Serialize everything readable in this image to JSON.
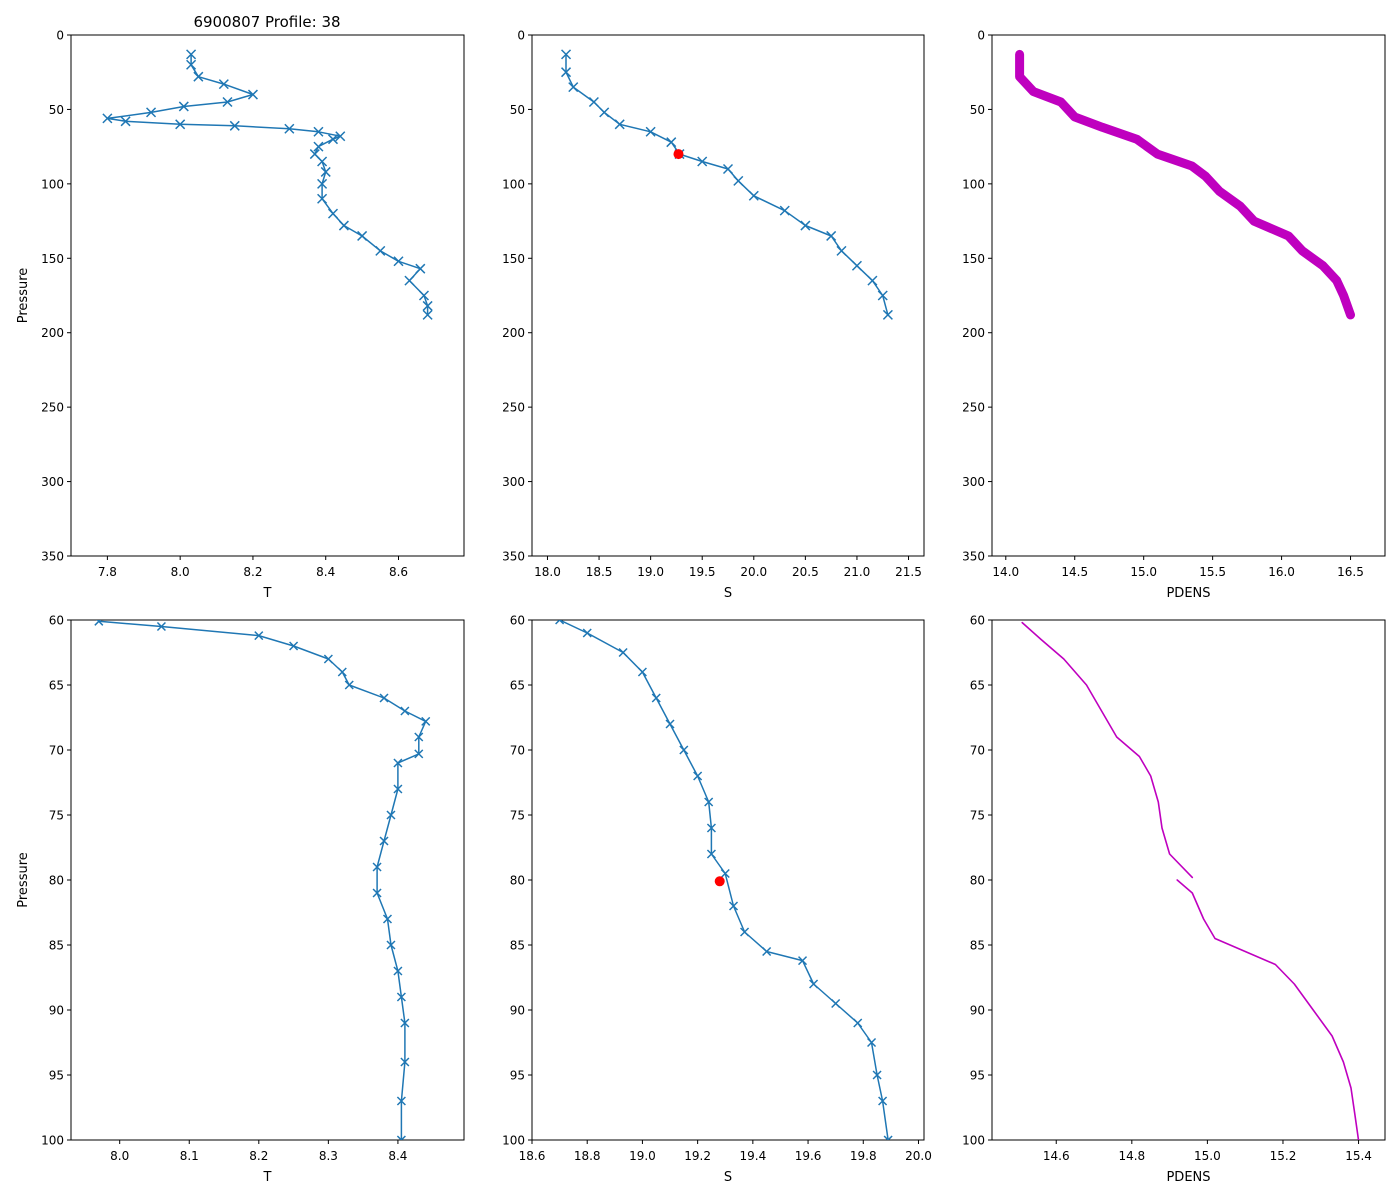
{
  "figure_title": "6900807 Profile: 38",
  "colors": {
    "series": "#1f77b4",
    "density": "#bf00bf",
    "highlight": "#ff0000",
    "axis": "#000000"
  },
  "chart_data": [
    {
      "id": "top-left",
      "type": "line",
      "marker": "x",
      "title": "6900807 Profile: 38",
      "xlabel": "T",
      "ylabel": "Pressure",
      "xlim": [
        7.7,
        8.78
      ],
      "ylim": [
        350,
        0
      ],
      "xticks": [
        "7.8",
        "8.0",
        "8.2",
        "8.4",
        "8.6"
      ],
      "yticks": [
        "0",
        "50",
        "100",
        "150",
        "200",
        "250",
        "300",
        "350"
      ],
      "series": [
        {
          "name": "T",
          "points": [
            [
              8.03,
              13
            ],
            [
              8.03,
              20
            ],
            [
              8.05,
              28
            ],
            [
              8.12,
              33
            ],
            [
              8.2,
              40
            ],
            [
              8.13,
              45
            ],
            [
              8.01,
              48
            ],
            [
              7.92,
              52
            ],
            [
              7.8,
              56
            ],
            [
              7.85,
              58
            ],
            [
              8.0,
              60
            ],
            [
              8.15,
              61
            ],
            [
              8.3,
              63
            ],
            [
              8.38,
              65
            ],
            [
              8.44,
              68
            ],
            [
              8.42,
              70
            ],
            [
              8.38,
              75
            ],
            [
              8.37,
              80
            ],
            [
              8.39,
              85
            ],
            [
              8.4,
              92
            ],
            [
              8.39,
              100
            ],
            [
              8.39,
              110
            ],
            [
              8.42,
              120
            ],
            [
              8.45,
              128
            ],
            [
              8.5,
              135
            ],
            [
              8.55,
              145
            ],
            [
              8.6,
              152
            ],
            [
              8.66,
              157
            ],
            [
              8.63,
              165
            ],
            [
              8.67,
              175
            ],
            [
              8.68,
              182
            ],
            [
              8.68,
              188
            ]
          ]
        }
      ]
    },
    {
      "id": "top-middle",
      "type": "line",
      "marker": "x",
      "title": "",
      "xlabel": "S",
      "ylabel": "",
      "xlim": [
        17.85,
        21.65
      ],
      "ylim": [
        350,
        0
      ],
      "xticks": [
        "18.0",
        "18.5",
        "19.0",
        "19.5",
        "20.0",
        "20.5",
        "21.0",
        "21.5"
      ],
      "yticks": [
        "0",
        "50",
        "100",
        "150",
        "200",
        "250",
        "300",
        "350"
      ],
      "series": [
        {
          "name": "S",
          "points": [
            [
              18.18,
              13
            ],
            [
              18.18,
              25
            ],
            [
              18.25,
              35
            ],
            [
              18.45,
              45
            ],
            [
              18.55,
              52
            ],
            [
              18.7,
              60
            ],
            [
              19.0,
              65
            ],
            [
              19.2,
              72
            ],
            [
              19.28,
              80
            ],
            [
              19.5,
              85
            ],
            [
              19.75,
              90
            ],
            [
              19.85,
              98
            ],
            [
              20.0,
              108
            ],
            [
              20.3,
              118
            ],
            [
              20.5,
              128
            ],
            [
              20.75,
              135
            ],
            [
              20.85,
              145
            ],
            [
              21.0,
              155
            ],
            [
              21.15,
              165
            ],
            [
              21.25,
              175
            ],
            [
              21.3,
              188
            ]
          ]
        }
      ],
      "highlight": {
        "x": 19.27,
        "y": 80
      }
    },
    {
      "id": "top-right",
      "type": "line",
      "marker": "",
      "title": "",
      "xlabel": "PDENS",
      "ylabel": "",
      "xlim": [
        13.9,
        16.75
      ],
      "ylim": [
        350,
        0
      ],
      "xticks": [
        "14.0",
        "14.5",
        "15.0",
        "15.5",
        "16.0",
        "16.5"
      ],
      "yticks": [
        "0",
        "50",
        "100",
        "150",
        "200",
        "250",
        "300",
        "350"
      ],
      "series": [
        {
          "name": "PDENS",
          "points": [
            [
              14.1,
              13
            ],
            [
              14.1,
              28
            ],
            [
              14.2,
              38
            ],
            [
              14.4,
              45
            ],
            [
              14.5,
              55
            ],
            [
              14.7,
              62
            ],
            [
              14.95,
              70
            ],
            [
              15.1,
              80
            ],
            [
              15.35,
              88
            ],
            [
              15.45,
              95
            ],
            [
              15.55,
              105
            ],
            [
              15.7,
              115
            ],
            [
              15.8,
              125
            ],
            [
              16.05,
              135
            ],
            [
              16.15,
              145
            ],
            [
              16.3,
              155
            ],
            [
              16.4,
              165
            ],
            [
              16.45,
              175
            ],
            [
              16.5,
              188
            ]
          ]
        }
      ]
    },
    {
      "id": "bottom-left",
      "type": "line",
      "marker": "x",
      "title": "",
      "xlabel": "T",
      "ylabel": "Pressure",
      "xlim": [
        7.93,
        8.495
      ],
      "ylim": [
        100,
        60
      ],
      "xticks": [
        "8.0",
        "8.1",
        "8.2",
        "8.3",
        "8.4"
      ],
      "yticks": [
        "60",
        "65",
        "70",
        "75",
        "80",
        "85",
        "90",
        "95",
        "100"
      ],
      "series": [
        {
          "name": "T",
          "points": [
            [
              7.97,
              60.1
            ],
            [
              8.06,
              60.5
            ],
            [
              8.2,
              61.2
            ],
            [
              8.25,
              62
            ],
            [
              8.3,
              63
            ],
            [
              8.32,
              64
            ],
            [
              8.33,
              65
            ],
            [
              8.38,
              66
            ],
            [
              8.41,
              67
            ],
            [
              8.44,
              67.8
            ],
            [
              8.43,
              69
            ],
            [
              8.43,
              70.3
            ],
            [
              8.4,
              71
            ],
            [
              8.4,
              73
            ],
            [
              8.39,
              75
            ],
            [
              8.38,
              77
            ],
            [
              8.37,
              79
            ],
            [
              8.37,
              81
            ],
            [
              8.385,
              83
            ],
            [
              8.39,
              85
            ],
            [
              8.4,
              87
            ],
            [
              8.405,
              89
            ],
            [
              8.41,
              91
            ],
            [
              8.41,
              94
            ],
            [
              8.405,
              97
            ],
            [
              8.405,
              100
            ]
          ]
        }
      ]
    },
    {
      "id": "bottom-middle",
      "type": "line",
      "marker": "x",
      "title": "",
      "xlabel": "S",
      "ylabel": "",
      "xlim": [
        18.6,
        20.02
      ],
      "ylim": [
        100,
        60
      ],
      "xticks": [
        "18.6",
        "18.8",
        "19.0",
        "19.2",
        "19.4",
        "19.6",
        "19.8",
        "20.0"
      ],
      "yticks": [
        "60",
        "65",
        "70",
        "75",
        "80",
        "85",
        "90",
        "95",
        "100"
      ],
      "series": [
        {
          "name": "S",
          "points": [
            [
              18.7,
              60
            ],
            [
              18.8,
              61
            ],
            [
              18.93,
              62.5
            ],
            [
              19.0,
              64
            ],
            [
              19.05,
              66
            ],
            [
              19.1,
              68
            ],
            [
              19.15,
              70
            ],
            [
              19.2,
              72
            ],
            [
              19.24,
              74
            ],
            [
              19.25,
              76
            ],
            [
              19.25,
              78
            ],
            [
              19.3,
              79.5
            ],
            [
              19.33,
              82
            ],
            [
              19.37,
              84
            ],
            [
              19.45,
              85.5
            ],
            [
              19.58,
              86.2
            ],
            [
              19.62,
              88
            ],
            [
              19.7,
              89.5
            ],
            [
              19.78,
              91
            ],
            [
              19.83,
              92.5
            ],
            [
              19.85,
              95
            ],
            [
              19.87,
              97
            ],
            [
              19.89,
              100
            ]
          ]
        }
      ],
      "highlight": {
        "x": 19.28,
        "y": 80.1
      }
    },
    {
      "id": "bottom-right",
      "type": "line",
      "marker": "",
      "title": "",
      "xlabel": "PDENS",
      "ylabel": "",
      "xlim": [
        14.43,
        15.47
      ],
      "ylim": [
        100,
        60
      ],
      "xticks": [
        "14.6",
        "14.8",
        "15.0",
        "15.2",
        "15.4"
      ],
      "yticks": [
        "60",
        "65",
        "70",
        "75",
        "80",
        "85",
        "90",
        "95",
        "100"
      ],
      "series": [
        {
          "name": "PDENS-upper",
          "points": [
            [
              14.51,
              60.2
            ],
            [
              14.56,
              61.5
            ],
            [
              14.62,
              63
            ],
            [
              14.68,
              65
            ],
            [
              14.72,
              67
            ],
            [
              14.76,
              69
            ],
            [
              14.82,
              70.5
            ],
            [
              14.85,
              72
            ],
            [
              14.87,
              74
            ],
            [
              14.88,
              76
            ],
            [
              14.9,
              78
            ],
            [
              14.96,
              79.8
            ]
          ]
        },
        {
          "name": "PDENS-lower",
          "points": [
            [
              14.92,
              80
            ],
            [
              14.96,
              81
            ],
            [
              14.99,
              83
            ],
            [
              15.02,
              84.5
            ],
            [
              15.1,
              85.5
            ],
            [
              15.18,
              86.5
            ],
            [
              15.23,
              88
            ],
            [
              15.28,
              90
            ],
            [
              15.33,
              92
            ],
            [
              15.36,
              94
            ],
            [
              15.38,
              96
            ],
            [
              15.39,
              98
            ],
            [
              15.4,
              100
            ]
          ]
        }
      ]
    }
  ]
}
